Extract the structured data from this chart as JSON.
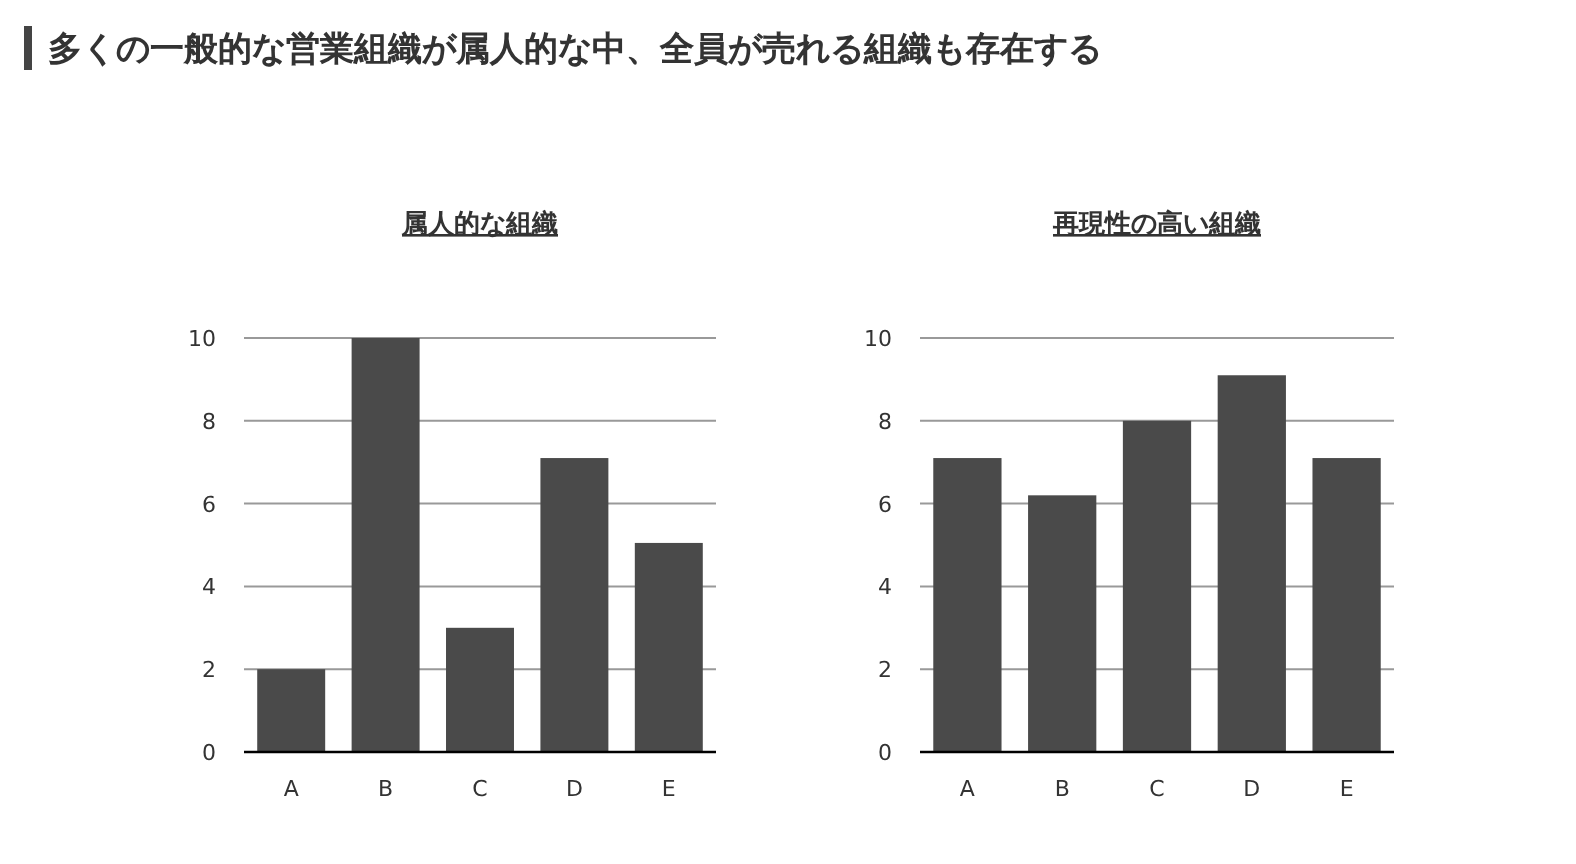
{
  "chart_data": [
    {
      "type": "other",
      "title": "多くの一般的な営業組織が属人的な中、全員が売れる組織も存在する"
    },
    {
      "type": "bar",
      "title": "属人的な組織",
      "categories": [
        "A",
        "B",
        "C",
        "D",
        "E"
      ],
      "values": [
        2,
        10,
        3,
        7.1,
        5.05
      ],
      "color": "#4a4a4a",
      "ylim": [
        0,
        10
      ],
      "yticks": [
        0,
        2,
        4,
        6,
        8,
        10
      ],
      "grid": "y"
    },
    {
      "type": "bar",
      "title": "再現性の高い組織",
      "categories": [
        "A",
        "B",
        "C",
        "D",
        "E"
      ],
      "values": [
        7.1,
        6.2,
        8,
        9.1,
        7.1
      ],
      "color": "#4a4a4a",
      "ylim": [
        0,
        10
      ],
      "yticks": [
        0,
        2,
        4,
        6,
        8,
        10
      ],
      "grid": "y"
    }
  ]
}
